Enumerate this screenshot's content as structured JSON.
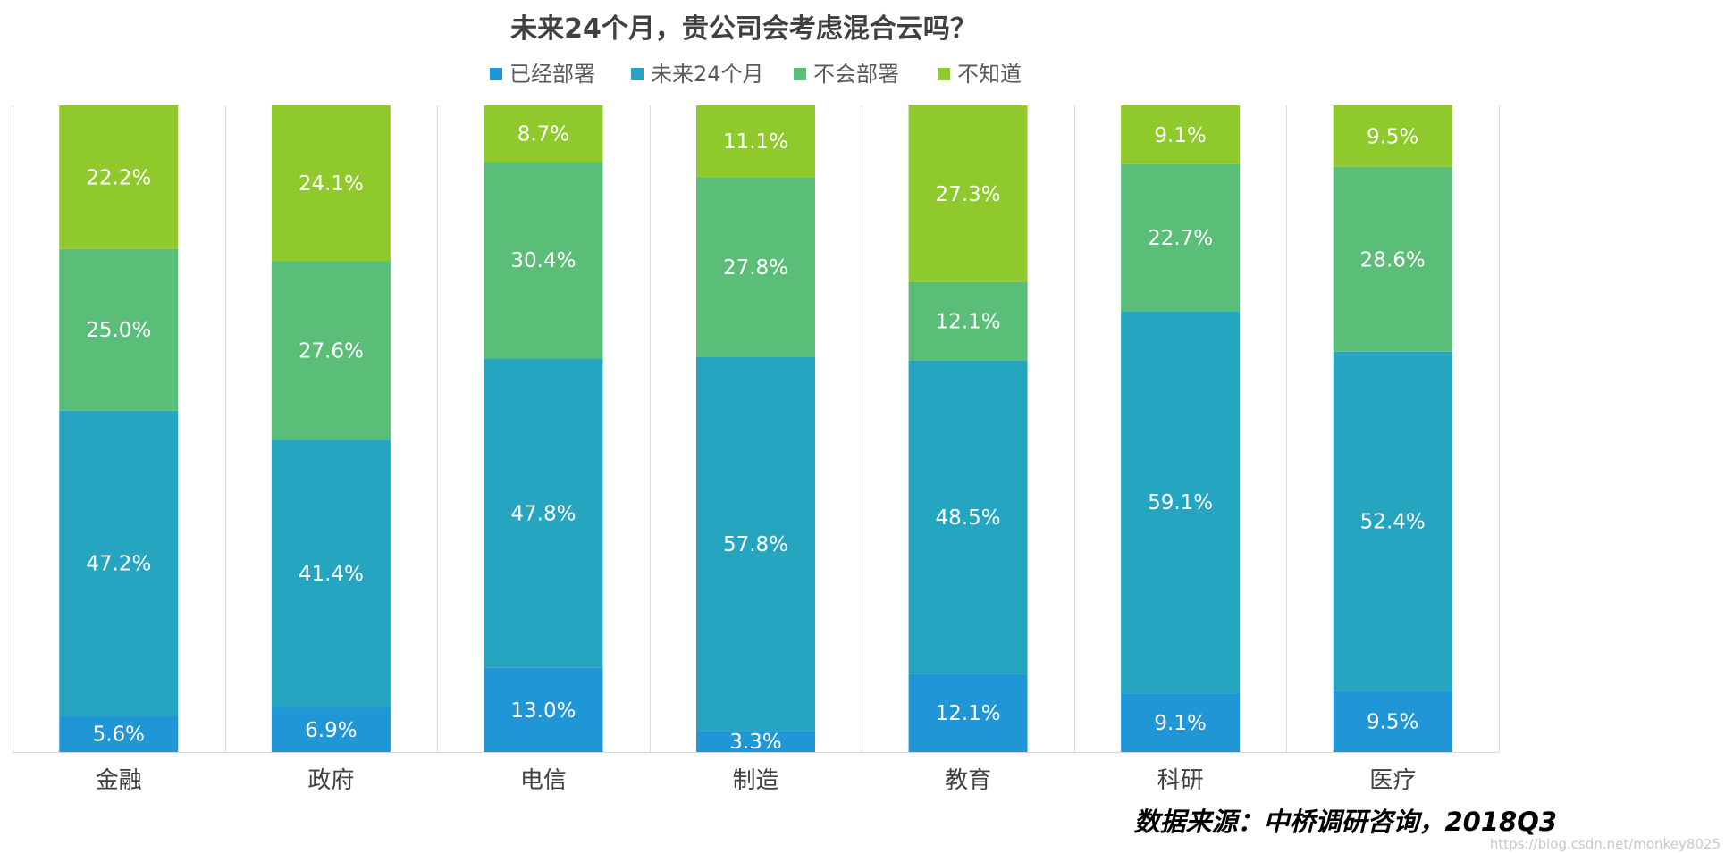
{
  "chart_data": {
    "type": "bar",
    "stacked": true,
    "normalized": true,
    "title": "未来24个月，贵公司会考虑混合云吗？",
    "categories": [
      "金融",
      "政府",
      "电信",
      "制造",
      "教育",
      "科研",
      "医疗"
    ],
    "series": [
      {
        "name": "已经部署",
        "color": "#2196d6",
        "values": [
          5.6,
          6.9,
          13.0,
          3.3,
          12.1,
          9.1,
          9.5
        ]
      },
      {
        "name": "未来24个月",
        "color": "#26a5c0",
        "values": [
          47.2,
          41.4,
          47.8,
          57.8,
          48.5,
          59.1,
          52.4
        ]
      },
      {
        "name": "不会部署",
        "color": "#5abe79",
        "values": [
          25.0,
          27.6,
          30.4,
          27.8,
          12.1,
          22.7,
          28.6
        ]
      },
      {
        "name": "不知道",
        "color": "#8fc92b",
        "values": [
          22.2,
          24.1,
          8.7,
          11.1,
          27.3,
          9.1,
          9.5
        ]
      }
    ],
    "value_format": "percent_1dp",
    "ylim": [
      0,
      100
    ],
    "legend_position": "top",
    "grid": "vertical-separators"
  },
  "source_note": "数据来源：中桥调研咨询，2018Q3",
  "watermark": "https://blog.csdn.net/monkey8025"
}
